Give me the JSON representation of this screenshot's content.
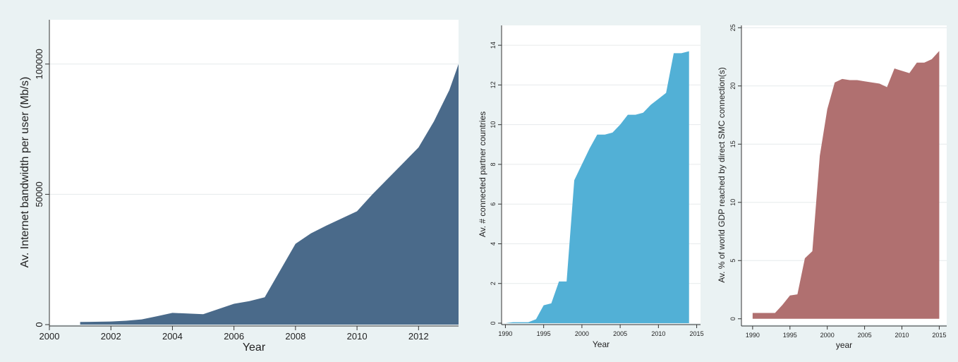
{
  "figure": {
    "background": "#eaf2f3",
    "plot_background": "#ffffff",
    "grid_color": "#e6eaeb"
  },
  "chart_data": [
    {
      "type": "area",
      "title": "",
      "xlabel": "Year",
      "ylabel": "Av. Internet bandwidth per user (Mb/s)",
      "xlim": [
        2000,
        2013.3
      ],
      "ylim": [
        0,
        117000
      ],
      "xticks": [
        2000,
        2002,
        2004,
        2006,
        2008,
        2010,
        2012
      ],
      "yticks": [
        0,
        50000,
        100000
      ],
      "ytick_rotation": -90,
      "grid": true,
      "color": "#4a6a8a",
      "series": [
        {
          "x": [
            2001,
            2002,
            2002.5,
            2003,
            2003.5,
            2004,
            2005,
            2005.5,
            2006,
            2006.5,
            2007,
            2008,
            2008.5,
            2009,
            2010,
            2010.5,
            2011,
            2011.5,
            2012,
            2012.5,
            2013,
            2013.3
          ],
          "values": [
            1000,
            1200,
            1500,
            2000,
            3200,
            4500,
            4000,
            6000,
            8000,
            9000,
            10500,
            31000,
            35000,
            38000,
            43500,
            50000,
            56000,
            62000,
            68000,
            78000,
            90000,
            100000
          ]
        }
      ]
    },
    {
      "type": "area",
      "title": "",
      "xlabel": "Year",
      "ylabel": "Av. # connected partner countries",
      "xlim": [
        1989.5,
        2015.5
      ],
      "ylim": [
        0,
        15
      ],
      "xticks": [
        1990,
        1995,
        2000,
        2005,
        2010,
        2015
      ],
      "yticks": [
        0,
        2,
        4,
        6,
        8,
        10,
        12,
        14
      ],
      "ytick_rotation": -90,
      "grid": true,
      "color": "#52b0d6",
      "series": [
        {
          "x": [
            1990,
            1991,
            1992,
            1993,
            1994,
            1995,
            1996,
            1997,
            1998,
            1999,
            2000,
            2001,
            2002,
            2003,
            2004,
            2005,
            2006,
            2007,
            2008,
            2009,
            2010,
            2011,
            2012,
            2013,
            2014
          ],
          "values": [
            0.0,
            0.05,
            0.05,
            0.05,
            0.2,
            0.9,
            1.0,
            2.1,
            2.1,
            7.2,
            8.0,
            8.8,
            9.5,
            9.5,
            9.6,
            10.0,
            10.5,
            10.5,
            10.6,
            11.0,
            11.3,
            11.6,
            13.6,
            13.6,
            13.7
          ]
        }
      ]
    },
    {
      "type": "area",
      "title": "",
      "xlabel": "year",
      "ylabel": "Av. % of world GDP reached by direct SMC connection(s)",
      "xlim": [
        1988.5,
        2016
      ],
      "ylim": [
        -0.5,
        25.2
      ],
      "xticks": [
        1990,
        1995,
        2000,
        2005,
        2010,
        2015
      ],
      "yticks": [
        0,
        5,
        10,
        15,
        20,
        25
      ],
      "ytick_rotation": -90,
      "grid": true,
      "color": "#b07070",
      "series": [
        {
          "x": [
            1990,
            1991,
            1992,
            1993,
            1994,
            1995,
            1996,
            1997,
            1998,
            1999,
            2000,
            2001,
            2002,
            2003,
            2004,
            2005,
            2006,
            2007,
            2008,
            2009,
            2010,
            2011,
            2012,
            2013,
            2014,
            2015
          ],
          "values": [
            0.5,
            0.5,
            0.5,
            0.5,
            1.2,
            2.0,
            2.1,
            5.2,
            5.8,
            14.0,
            18.0,
            20.3,
            20.6,
            20.5,
            20.5,
            20.4,
            20.3,
            20.2,
            19.9,
            21.5,
            21.3,
            21.1,
            22.0,
            22.0,
            22.3,
            23.0
          ]
        }
      ]
    }
  ]
}
